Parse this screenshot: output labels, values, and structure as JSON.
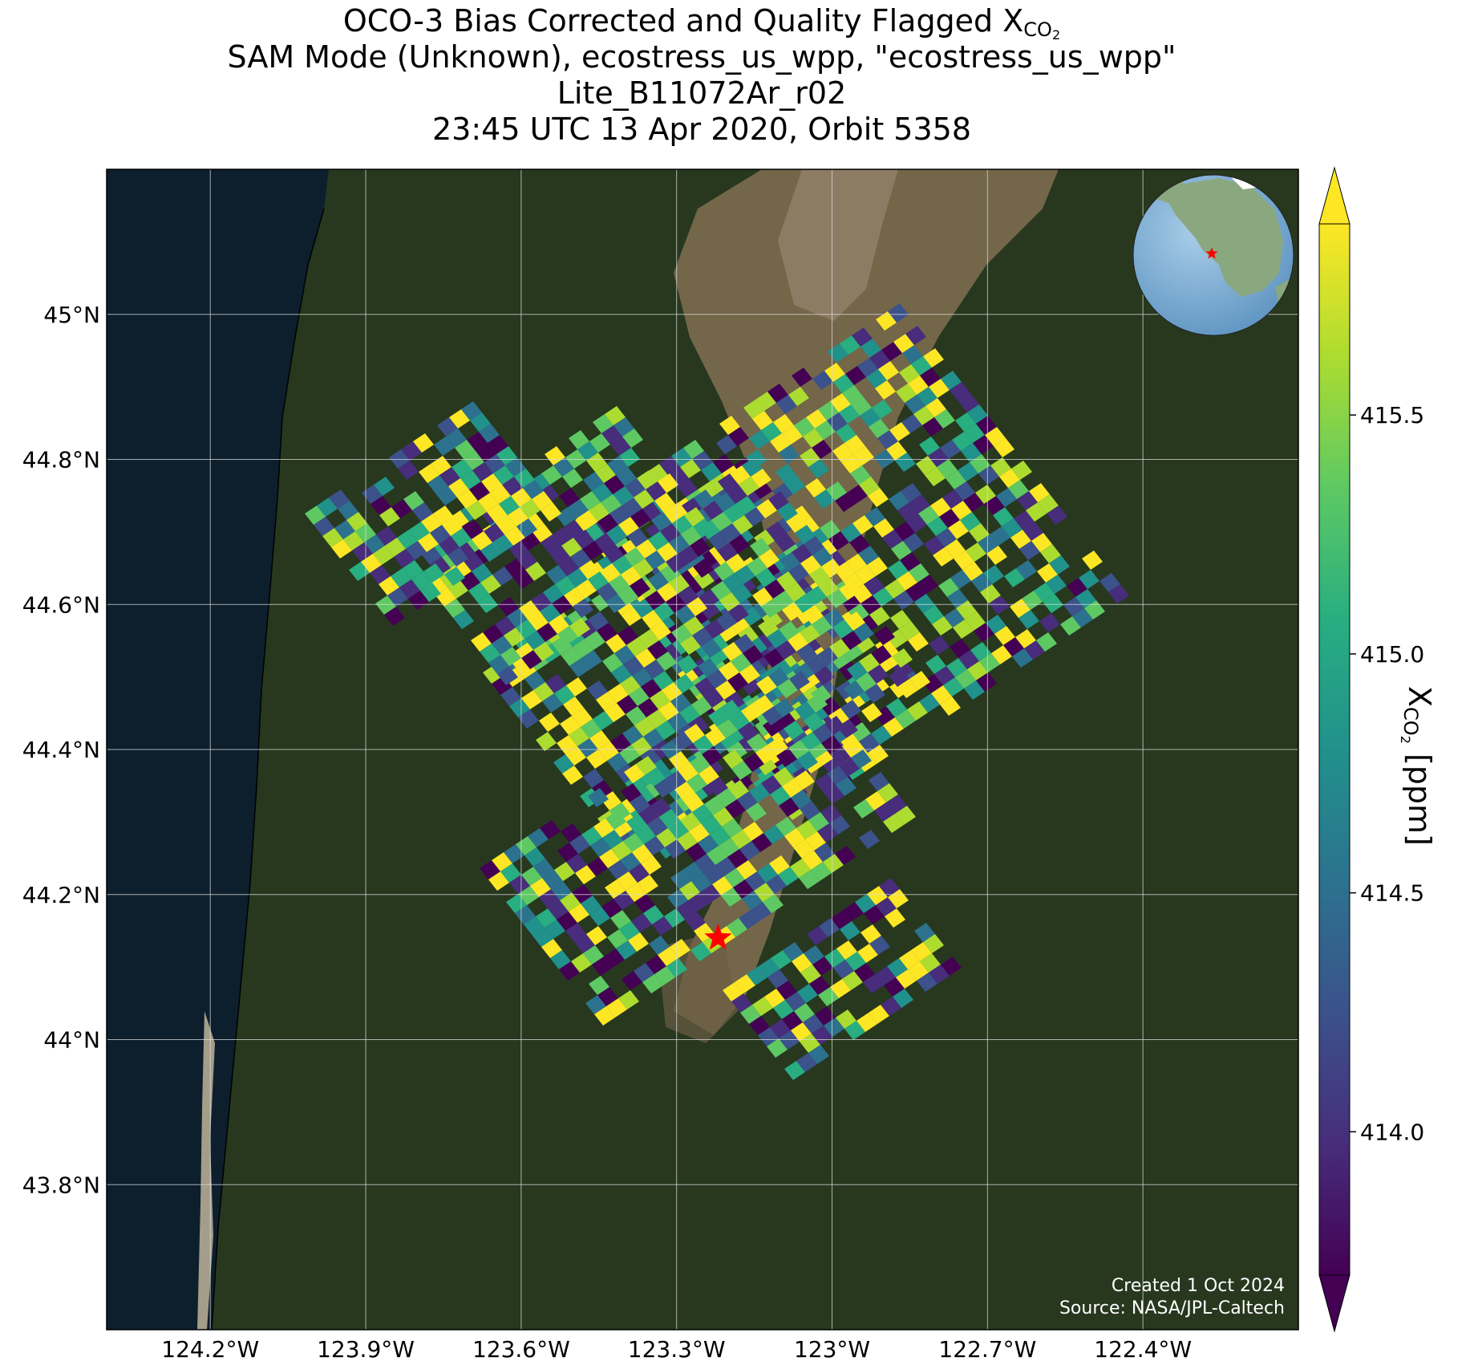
{
  "title": {
    "line1_prefix": "OCO-3 Bias Corrected and Quality Flagged X",
    "line1_sub": "CO",
    "line1_subsub": "2",
    "line2": "SAM Mode (Unknown), ecostress_us_wpp, \"ecostress_us_wpp\"",
    "line3": "Lite_B11072Ar_r02",
    "line4": "23:45 UTC 13 Apr 2020, Orbit 5358"
  },
  "map": {
    "lon_range": [
      -124.4,
      -122.1
    ],
    "lat_range": [
      43.6,
      45.2
    ],
    "lon_ticks": [
      {
        "value": -124.2,
        "label": "124.2°W"
      },
      {
        "value": -123.9,
        "label": "123.9°W"
      },
      {
        "value": -123.6,
        "label": "123.6°W"
      },
      {
        "value": -123.3,
        "label": "123.3°W"
      },
      {
        "value": -123.0,
        "label": "123°W"
      },
      {
        "value": -122.7,
        "label": "122.7°W"
      },
      {
        "value": -122.4,
        "label": "122.4°W"
      }
    ],
    "lat_ticks": [
      {
        "value": 45.0,
        "label": "45°N"
      },
      {
        "value": 44.8,
        "label": "44.8°N"
      },
      {
        "value": 44.6,
        "label": "44.6°N"
      },
      {
        "value": 44.4,
        "label": "44.4°N"
      },
      {
        "value": 44.2,
        "label": "44.2°N"
      },
      {
        "value": 44.0,
        "label": "44°N"
      },
      {
        "value": 43.8,
        "label": "43.8°N"
      }
    ],
    "target": {
      "lon": -123.22,
      "lat": 44.14,
      "label": "ecostress_us_wpp",
      "color": "#ff0000"
    },
    "credit_line1": "Created 1 Oct 2024",
    "credit_line2": "Source: NASA/JPL-Caltech",
    "colors": {
      "ocean": "#0d1f2d",
      "land": "#27381f",
      "valley": "#8d7558",
      "grid": "#dcdcdc",
      "soundings_palette": "viridis"
    }
  },
  "colorbar": {
    "min": 413.7,
    "max": 415.9,
    "extend": "both",
    "ticks": [
      {
        "value": 414.0,
        "label": "414.0"
      },
      {
        "value": 414.5,
        "label": "414.5"
      },
      {
        "value": 415.0,
        "label": "415.0"
      },
      {
        "value": 415.5,
        "label": "415.5"
      }
    ],
    "label_prefix": "X",
    "label_sub": "CO",
    "label_subsub": "2",
    "label_suffix": " [ppm]"
  },
  "inset_globe": {
    "ocean_color": "#7fb0d6",
    "land_color": "#8aa880",
    "marker_color": "#ff0000"
  }
}
